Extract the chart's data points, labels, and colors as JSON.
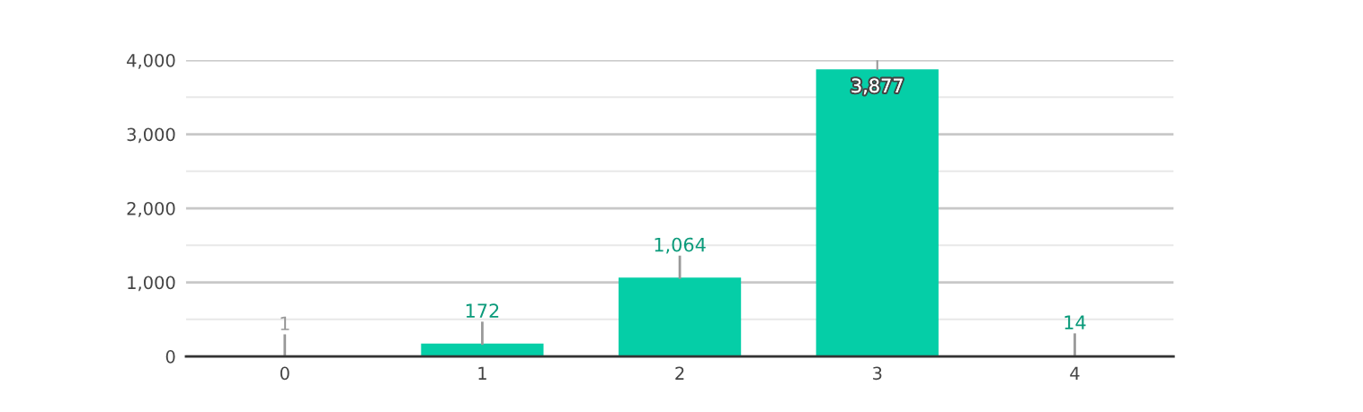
{
  "chart_data": {
    "type": "bar",
    "categories": [
      "0",
      "1",
      "2",
      "3",
      "4"
    ],
    "values": [
      1,
      172,
      1064,
      3877,
      14
    ],
    "value_labels": [
      "1",
      "172",
      "1,064",
      "3,877",
      "14"
    ],
    "color": "#05cea7",
    "ylim": [
      0,
      4000
    ],
    "yticks": [
      0,
      {
        "value": 500,
        "label": null
      },
      {
        "value": 1000,
        "label": "1,000"
      },
      {
        "value": 1500,
        "label": null
      },
      {
        "value": 2000,
        "label": "2,000"
      },
      {
        "value": 2500,
        "label": null
      },
      {
        "value": 3000,
        "label": "3,000"
      },
      {
        "value": 3500,
        "label": null
      },
      {
        "value": 4000,
        "label": "4,000"
      }
    ],
    "grid": "y"
  }
}
